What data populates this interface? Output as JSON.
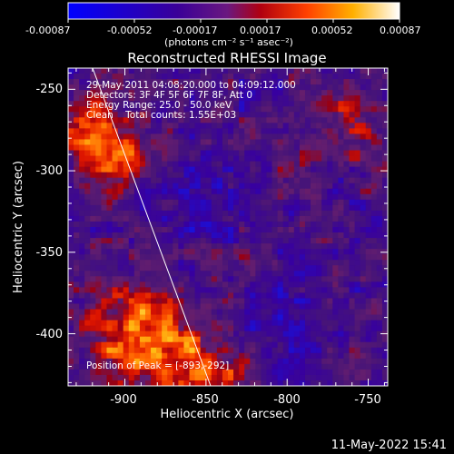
{
  "colorbar": {
    "ticks": [
      "-0.00087",
      "-0.00052",
      "-0.00017",
      "0.00017",
      "0.00052",
      "0.00087"
    ],
    "units": "(photons cm⁻² s⁻¹ asec⁻²)"
  },
  "plot": {
    "title": "Reconstructed RHESSI Image",
    "xlabel": "Heliocentric X (arcsec)",
    "ylabel": "Heliocentric Y (arcsec)",
    "xticks": [
      "-900",
      "-850",
      "-800",
      "-750"
    ],
    "yticks": [
      "-250",
      "-300",
      "-350",
      "-400"
    ],
    "xrange": [
      -935,
      -738
    ],
    "yrange": [
      -432,
      -237
    ]
  },
  "annotations": {
    "time_range": "29-May-2011 04:08:20.000 to 04:09:12.000",
    "detectors": "Detectors: 3F 4F 5F 6F 7F 8F, Att 0",
    "energy": "Energy Range: 25.0 - 50.0 keV",
    "method": "Clean    Total counts: 1.55E+03",
    "peak": "Position of Peak = [-893,-292]"
  },
  "footer": {
    "timestamp": "11-May-2022 15:41"
  },
  "colors": {
    "background": "#000000",
    "text": "#ffffff"
  }
}
